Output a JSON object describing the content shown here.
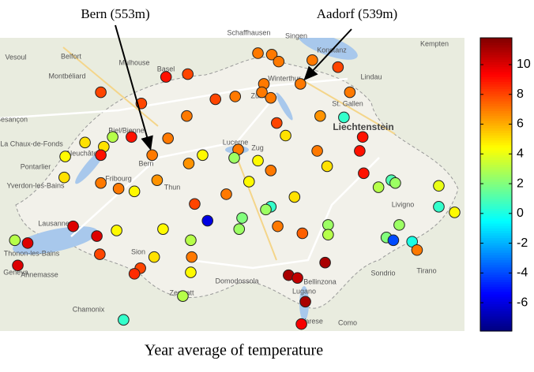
{
  "chart_data": {
    "type": "scatter",
    "title": "Year average of temperature",
    "annotations": [
      {
        "text": "Bern (553m)"
      },
      {
        "text": "Aadorf (539m)"
      }
    ],
    "map_labels": [
      "Mulhouse",
      "Vesoul",
      "Belfort",
      "Montbéliard",
      "Basel",
      "Schaffhausen",
      "Singen",
      "Konstanz",
      "Kempten",
      "Winterthur",
      "Zürich",
      "St. Gallen",
      "Lindau",
      "Liechtenstein",
      "Besançon",
      "Biel/Bienne",
      "La Chaux-de-Fonds",
      "Neuchâtel",
      "Pontarlier",
      "Yverdon-les-Bains",
      "Bern",
      "Thun",
      "Fribourg",
      "Zug",
      "Lucerne",
      "Lausanne",
      "Thonon-les-Bains",
      "Annemasse",
      "Geneva",
      "Sion",
      "Zermatt",
      "Domodossola",
      "Bellinzona",
      "Lugano",
      "Varese",
      "Como",
      "Chamonix",
      "Sondrio",
      "Tirano",
      "Livigno"
    ],
    "xlim": [
      5.85,
      10.55
    ],
    "ylim": [
      45.75,
      47.85
    ],
    "x": [
      8.46,
      8.6,
      9.01,
      9.27,
      8.67,
      7.53,
      7.75,
      8.52,
      8.5,
      8.89,
      9.39,
      6.87,
      7.28,
      8.03,
      8.23,
      8.59,
      7.74,
      9.33,
      9.09,
      8.65,
      8.74,
      6.99,
      7.18,
      7.55,
      9.52,
      6.71,
      6.9,
      6.87,
      7.39,
      8.26,
      7.9,
      9.06,
      9.49,
      7.76,
      8.22,
      8.46,
      6.51,
      9.16,
      8.59,
      9.53,
      6.5,
      6.87,
      7.05,
      7.21,
      7.44,
      8.37,
      8.14,
      8.83,
      9.81,
      9.85,
      9.68,
      10.29,
      10.29,
      10.45,
      7.82,
      7.95,
      8.3,
      8.59,
      8.54,
      8.27,
      8.66,
      9.17,
      9.17,
      8.91,
      9.89,
      9.76,
      9.83,
      10.02,
      10.07,
      6.59,
      6.83,
      7.03,
      7.5,
      6.0,
      6.13,
      7.78,
      6.86,
      7.79,
      7.41,
      6.03,
      9.14,
      7.27,
      7.21,
      7.78,
      8.77,
      8.86,
      7.7,
      8.94,
      7.1,
      8.9
    ],
    "y": [
      47.74,
      47.73,
      47.69,
      47.64,
      47.68,
      47.57,
      47.59,
      47.52,
      47.46,
      47.52,
      47.46,
      47.46,
      47.38,
      47.41,
      47.43,
      47.42,
      47.29,
      47.28,
      47.29,
      47.24,
      47.15,
      47.14,
      47.14,
      47.13,
      47.14,
      47.1,
      47.07,
      47.01,
      47.01,
      47.05,
      47.01,
      47.04,
      47.04,
      46.95,
      46.99,
      46.97,
      47.0,
      46.93,
      46.9,
      46.88,
      46.85,
      46.81,
      46.77,
      46.75,
      46.83,
      46.82,
      46.73,
      46.71,
      46.83,
      46.81,
      46.78,
      46.79,
      46.64,
      46.6,
      46.66,
      46.54,
      46.56,
      46.64,
      46.62,
      46.48,
      46.5,
      46.51,
      46.44,
      46.45,
      46.51,
      46.42,
      46.4,
      46.39,
      46.33,
      46.5,
      46.43,
      46.47,
      46.48,
      46.4,
      46.38,
      46.4,
      46.3,
      46.28,
      46.28,
      46.22,
      46.24,
      46.2,
      46.16,
      46.17,
      46.15,
      46.13,
      46.0,
      45.96,
      45.83,
      45.8
    ],
    "values": [
      7,
      7,
      7,
      8,
      7,
      9,
      8,
      7,
      7,
      7,
      7,
      8,
      8,
      8,
      7,
      7,
      7,
      0.5,
      6.5,
      8,
      5,
      3,
      9,
      7,
      9,
      5,
      5,
      9,
      7,
      7,
      4.5,
      7,
      9,
      6.5,
      2.5,
      4.5,
      4.5,
      5,
      7,
      9,
      5,
      7,
      7,
      4.5,
      6.5,
      4.5,
      7,
      5,
      1,
      2.5,
      3,
      4,
      0.5,
      4.5,
      8,
      -6,
      2,
      0.5,
      2.5,
      2.5,
      7,
      2.5,
      3,
      7.5,
      2.5,
      2,
      -4,
      0,
      7,
      10,
      10,
      4.5,
      4.5,
      3,
      10,
      3,
      8,
      7,
      5,
      10,
      11,
      8,
      8.5,
      4.5,
      11,
      10.5,
      3,
      11,
      0.5,
      9.5
    ],
    "colorbar": {
      "colormap": "jet",
      "lim": [
        -7.9,
        11.8
      ],
      "ticks": [
        -6,
        -4,
        -2,
        0,
        2,
        4,
        6,
        8,
        10
      ]
    }
  }
}
